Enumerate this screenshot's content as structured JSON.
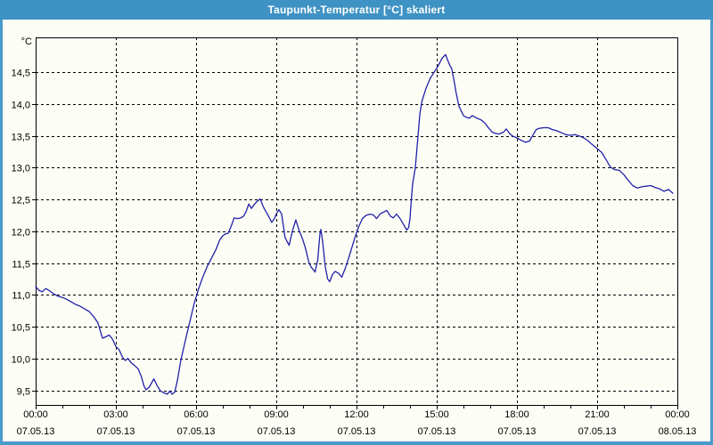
{
  "window": {
    "title": "Taupunkt-Temperatur [°C] skaliert"
  },
  "colors": {
    "titlebar": "#3E92C4",
    "frame_border": "#4A9BCB",
    "background": "#FCFEF6",
    "axis": "#000000",
    "line": "#2121A8"
  },
  "chart_data": {
    "type": "line",
    "title": "Taupunkt-Temperatur [°C] skaliert",
    "grid": "dashed",
    "legend": "none",
    "y_axis": {
      "unit_label": "°C",
      "range_top": 15.05,
      "range_bottom": 9.27,
      "ticks": [
        {
          "value": 14.5,
          "label": "14,5"
        },
        {
          "value": 14.0,
          "label": "14,0"
        },
        {
          "value": 13.5,
          "label": "13,5"
        },
        {
          "value": 13.0,
          "label": "13,0"
        },
        {
          "value": 12.5,
          "label": "12,5"
        },
        {
          "value": 12.0,
          "label": "12,0"
        },
        {
          "value": 11.5,
          "label": "11,5"
        },
        {
          "value": 11.0,
          "label": "11,0"
        },
        {
          "value": 10.5,
          "label": "10,5"
        },
        {
          "value": 10.0,
          "label": "10,0"
        },
        {
          "value": 9.5,
          "label": "9,5"
        }
      ]
    },
    "x_axis": {
      "range_hours": [
        0,
        24
      ],
      "minor_tick_every_hours": 1,
      "gridline_hours": [
        3,
        6,
        9,
        12,
        15,
        18,
        21
      ],
      "labels": [
        {
          "hour": 0,
          "time": "00:00",
          "date": "07.05.13"
        },
        {
          "hour": 3,
          "time": "03:00",
          "date": "07.05.13"
        },
        {
          "hour": 6,
          "time": "06:00",
          "date": "07.05.13"
        },
        {
          "hour": 9,
          "time": "09:00",
          "date": "07.05.13"
        },
        {
          "hour": 12,
          "time": "12:00",
          "date": "07.05.13"
        },
        {
          "hour": 15,
          "time": "15:00",
          "date": "07.05.13"
        },
        {
          "hour": 18,
          "time": "18:00",
          "date": "07.05.13"
        },
        {
          "hour": 21,
          "time": "21:00",
          "date": "07.05.13"
        },
        {
          "hour": 24,
          "time": "00:00",
          "date": "08.05.13"
        }
      ]
    },
    "series": [
      {
        "name": "Taupunkt-Temperatur",
        "color": "#2121A8",
        "points": [
          [
            0,
            11.13
          ],
          [
            0.13,
            11.07
          ],
          [
            0.25,
            11.05
          ],
          [
            0.38,
            11.1
          ],
          [
            0.5,
            11.07
          ],
          [
            0.67,
            11.02
          ],
          [
            0.83,
            10.98
          ],
          [
            1,
            10.96
          ],
          [
            1.17,
            10.93
          ],
          [
            1.33,
            10.89
          ],
          [
            1.5,
            10.85
          ],
          [
            1.67,
            10.82
          ],
          [
            1.83,
            10.78
          ],
          [
            2,
            10.74
          ],
          [
            2.17,
            10.66
          ],
          [
            2.33,
            10.56
          ],
          [
            2.5,
            10.32
          ],
          [
            2.62,
            10.34
          ],
          [
            2.75,
            10.37
          ],
          [
            2.88,
            10.3
          ],
          [
            3,
            10.19
          ],
          [
            3.12,
            10.14
          ],
          [
            3.25,
            10.02
          ],
          [
            3.35,
            9.97
          ],
          [
            3.45,
            10
          ],
          [
            3.58,
            9.93
          ],
          [
            3.7,
            9.89
          ],
          [
            3.83,
            9.84
          ],
          [
            3.95,
            9.72
          ],
          [
            4.05,
            9.57
          ],
          [
            4.13,
            9.51
          ],
          [
            4.25,
            9.55
          ],
          [
            4.42,
            9.68
          ],
          [
            4.55,
            9.57
          ],
          [
            4.67,
            9.49
          ],
          [
            4.8,
            9.46
          ],
          [
            4.92,
            9.44
          ],
          [
            5.02,
            9.49
          ],
          [
            5.1,
            9.44
          ],
          [
            5.2,
            9.47
          ],
          [
            5.3,
            9.65
          ],
          [
            5.42,
            9.95
          ],
          [
            5.58,
            10.25
          ],
          [
            5.75,
            10.55
          ],
          [
            5.92,
            10.85
          ],
          [
            6.08,
            11.08
          ],
          [
            6.25,
            11.28
          ],
          [
            6.42,
            11.45
          ],
          [
            6.58,
            11.58
          ],
          [
            6.75,
            11.72
          ],
          [
            6.88,
            11.86
          ],
          [
            7,
            11.93
          ],
          [
            7.1,
            11.96
          ],
          [
            7.2,
            11.97
          ],
          [
            7.33,
            12.1
          ],
          [
            7.42,
            12.21
          ],
          [
            7.55,
            12.2
          ],
          [
            7.67,
            12.21
          ],
          [
            7.78,
            12.24
          ],
          [
            7.88,
            12.32
          ],
          [
            7.97,
            12.43
          ],
          [
            8.07,
            12.36
          ],
          [
            8.17,
            12.42
          ],
          [
            8.28,
            12.47
          ],
          [
            8.4,
            12.51
          ],
          [
            8.5,
            12.4
          ],
          [
            8.57,
            12.34
          ],
          [
            8.67,
            12.27
          ],
          [
            8.83,
            12.14
          ],
          [
            8.93,
            12.2
          ],
          [
            9,
            12.27
          ],
          [
            9.1,
            12.34
          ],
          [
            9.2,
            12.27
          ],
          [
            9.33,
            11.9
          ],
          [
            9.48,
            11.78
          ],
          [
            9.6,
            12
          ],
          [
            9.73,
            12.18
          ],
          [
            9.85,
            12.02
          ],
          [
            10,
            11.86
          ],
          [
            10.1,
            11.72
          ],
          [
            10.22,
            11.51
          ],
          [
            10.3,
            11.44
          ],
          [
            10.38,
            11.4
          ],
          [
            10.45,
            11.36
          ],
          [
            10.55,
            11.55
          ],
          [
            10.63,
            11.95
          ],
          [
            10.67,
            12.03
          ],
          [
            10.73,
            11.85
          ],
          [
            10.83,
            11.45
          ],
          [
            10.92,
            11.25
          ],
          [
            11,
            11.21
          ],
          [
            11.1,
            11.32
          ],
          [
            11.2,
            11.37
          ],
          [
            11.33,
            11.34
          ],
          [
            11.45,
            11.28
          ],
          [
            11.58,
            11.42
          ],
          [
            11.7,
            11.57
          ],
          [
            11.83,
            11.75
          ],
          [
            11.97,
            11.94
          ],
          [
            12.08,
            12.07
          ],
          [
            12.22,
            12.2
          ],
          [
            12.35,
            12.25
          ],
          [
            12.5,
            12.27
          ],
          [
            12.63,
            12.26
          ],
          [
            12.75,
            12.2
          ],
          [
            12.9,
            12.28
          ],
          [
            13.05,
            12.31
          ],
          [
            13.13,
            12.33
          ],
          [
            13.27,
            12.24
          ],
          [
            13.37,
            12.21
          ],
          [
            13.5,
            12.27
          ],
          [
            13.63,
            12.2
          ],
          [
            13.77,
            12.1
          ],
          [
            13.88,
            12.02
          ],
          [
            13.95,
            12.06
          ],
          [
            14,
            12.2
          ],
          [
            14.05,
            12.5
          ],
          [
            14.1,
            12.75
          ],
          [
            14.2,
            13
          ],
          [
            14.3,
            13.5
          ],
          [
            14.37,
            13.85
          ],
          [
            14.45,
            14.05
          ],
          [
            14.6,
            14.25
          ],
          [
            14.75,
            14.4
          ],
          [
            14.9,
            14.5
          ],
          [
            15.05,
            14.6
          ],
          [
            15.2,
            14.72
          ],
          [
            15.33,
            14.78
          ],
          [
            15.42,
            14.68
          ],
          [
            15.5,
            14.6
          ],
          [
            15.56,
            14.56
          ],
          [
            15.67,
            14.32
          ],
          [
            15.72,
            14.19
          ],
          [
            15.83,
            13.97
          ],
          [
            16,
            13.82
          ],
          [
            16.12,
            13.79
          ],
          [
            16.22,
            13.78
          ],
          [
            16.33,
            13.82
          ],
          [
            16.5,
            13.78
          ],
          [
            16.67,
            13.75
          ],
          [
            16.83,
            13.69
          ],
          [
            16.95,
            13.62
          ],
          [
            17.08,
            13.56
          ],
          [
            17.2,
            13.54
          ],
          [
            17.33,
            13.53
          ],
          [
            17.5,
            13.56
          ],
          [
            17.6,
            13.61
          ],
          [
            17.72,
            13.54
          ],
          [
            17.83,
            13.5
          ],
          [
            18,
            13.47
          ],
          [
            18.17,
            13.43
          ],
          [
            18.33,
            13.4
          ],
          [
            18.47,
            13.42
          ],
          [
            18.58,
            13.5
          ],
          [
            18.72,
            13.6
          ],
          [
            18.83,
            13.62
          ],
          [
            19,
            13.63
          ],
          [
            19.17,
            13.63
          ],
          [
            19.33,
            13.6
          ],
          [
            19.5,
            13.58
          ],
          [
            19.67,
            13.55
          ],
          [
            19.83,
            13.52
          ],
          [
            20,
            13.51
          ],
          [
            20.17,
            13.52
          ],
          [
            20.33,
            13.5
          ],
          [
            20.5,
            13.47
          ],
          [
            20.67,
            13.42
          ],
          [
            20.83,
            13.36
          ],
          [
            21,
            13.3
          ],
          [
            21.17,
            13.24
          ],
          [
            21.33,
            13.13
          ],
          [
            21.5,
            13.01
          ],
          [
            21.65,
            12.97
          ],
          [
            21.83,
            12.96
          ],
          [
            22,
            12.89
          ],
          [
            22.17,
            12.8
          ],
          [
            22.33,
            12.72
          ],
          [
            22.5,
            12.68
          ],
          [
            22.67,
            12.7
          ],
          [
            22.83,
            12.71
          ],
          [
            23,
            12.72
          ],
          [
            23.17,
            12.69
          ],
          [
            23.33,
            12.67
          ],
          [
            23.5,
            12.63
          ],
          [
            23.67,
            12.66
          ],
          [
            23.83,
            12.6
          ]
        ]
      }
    ]
  }
}
